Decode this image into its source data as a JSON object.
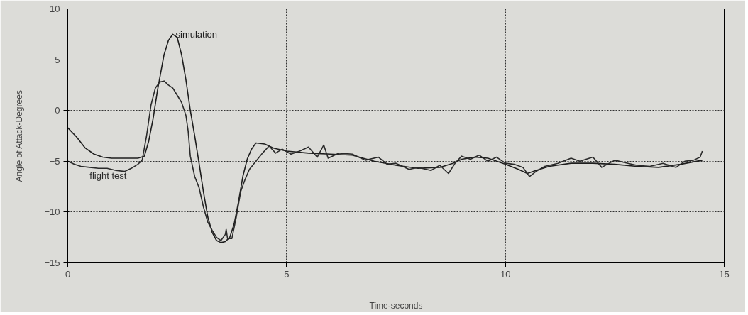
{
  "chart_data": {
    "type": "line",
    "xlabel": "Time-seconds",
    "ylabel": "Angle of Attack-Degrees",
    "xlim": [
      0,
      15
    ],
    "ylim": [
      -15,
      10
    ],
    "xticks": [
      0,
      5,
      10,
      15
    ],
    "yticks": [
      -15,
      -10,
      -5,
      0,
      5,
      10
    ],
    "grid": true,
    "line_style": "solid",
    "series": [
      {
        "name": "simulation",
        "color": "#1e1e1e",
        "x": [
          0,
          0.2,
          0.4,
          0.6,
          0.8,
          1.0,
          1.3,
          1.6,
          1.75,
          1.85,
          1.95,
          2.05,
          2.2,
          2.3,
          2.4,
          2.5,
          2.6,
          2.7,
          2.8,
          2.9,
          3.0,
          3.1,
          3.2,
          3.3,
          3.4,
          3.5,
          3.6,
          3.7,
          3.8,
          3.9,
          4.0,
          4.1,
          4.2,
          4.3,
          4.5,
          4.7,
          5.0,
          5.5,
          6.0,
          6.5,
          7.0,
          7.5,
          8.0,
          8.5,
          8.8,
          9.0,
          9.3,
          9.6,
          10.0,
          10.3,
          10.5,
          10.7,
          11.0,
          11.5,
          12.0,
          12.5,
          13.0,
          13.5,
          14.0,
          14.5
        ],
        "values": [
          -1.7,
          -2.6,
          -3.7,
          -4.3,
          -4.6,
          -4.7,
          -4.7,
          -4.7,
          -4.5,
          -3.0,
          -0.8,
          2.0,
          5.5,
          6.9,
          7.5,
          7.2,
          5.5,
          3.0,
          0.0,
          -2.5,
          -5.2,
          -8.0,
          -10.5,
          -12.0,
          -12.8,
          -13.0,
          -12.9,
          -12.5,
          -11.2,
          -9.0,
          -6.5,
          -4.8,
          -3.8,
          -3.2,
          -3.3,
          -3.7,
          -4.0,
          -4.2,
          -4.3,
          -4.4,
          -5.0,
          -5.4,
          -5.7,
          -5.6,
          -5.2,
          -4.8,
          -4.6,
          -4.7,
          -5.3,
          -5.8,
          -6.2,
          -5.9,
          -5.5,
          -5.2,
          -5.2,
          -5.3,
          -5.5,
          -5.6,
          -5.3,
          -4.9
        ]
      },
      {
        "name": "flight test",
        "color": "#2a2a2a",
        "x": [
          0,
          0.15,
          0.3,
          0.5,
          0.7,
          0.9,
          1.1,
          1.3,
          1.45,
          1.6,
          1.7,
          1.8,
          1.9,
          2.0,
          2.1,
          2.2,
          2.3,
          2.4,
          2.5,
          2.6,
          2.7,
          2.75,
          2.8,
          2.9,
          3.0,
          3.1,
          3.2,
          3.3,
          3.4,
          3.5,
          3.6,
          3.62,
          3.65,
          3.75,
          3.85,
          3.95,
          4.05,
          4.15,
          4.3,
          4.45,
          4.6,
          4.75,
          4.9,
          5.1,
          5.3,
          5.5,
          5.7,
          5.85,
          5.95,
          6.2,
          6.5,
          6.8,
          7.1,
          7.3,
          7.5,
          7.8,
          8.0,
          8.3,
          8.5,
          8.7,
          8.85,
          9.0,
          9.2,
          9.4,
          9.6,
          9.8,
          10.0,
          10.2,
          10.4,
          10.55,
          10.7,
          10.9,
          11.2,
          11.5,
          11.7,
          12.0,
          12.2,
          12.5,
          12.8,
          13.0,
          13.3,
          13.6,
          13.9,
          14.1,
          14.3,
          14.45,
          14.5
        ],
        "values": [
          -5.0,
          -5.3,
          -5.5,
          -5.6,
          -5.7,
          -5.7,
          -5.9,
          -6.0,
          -5.7,
          -5.3,
          -4.9,
          -2.5,
          0.5,
          2.2,
          2.8,
          2.9,
          2.5,
          2.2,
          1.5,
          0.8,
          -0.5,
          -2.0,
          -4.5,
          -6.5,
          -7.6,
          -9.5,
          -11.0,
          -11.8,
          -12.5,
          -12.8,
          -12.2,
          -11.7,
          -12.6,
          -12.6,
          -10.5,
          -8.0,
          -6.8,
          -5.8,
          -5.0,
          -4.2,
          -3.5,
          -4.2,
          -3.8,
          -4.3,
          -4.0,
          -3.6,
          -4.6,
          -3.4,
          -4.7,
          -4.2,
          -4.3,
          -4.9,
          -4.6,
          -5.3,
          -5.2,
          -5.8,
          -5.6,
          -5.9,
          -5.4,
          -6.2,
          -5.2,
          -4.5,
          -4.8,
          -4.4,
          -5.0,
          -4.6,
          -5.2,
          -5.3,
          -5.6,
          -6.5,
          -6.0,
          -5.5,
          -5.2,
          -4.7,
          -5.0,
          -4.6,
          -5.6,
          -4.9,
          -5.2,
          -5.4,
          -5.5,
          -5.2,
          -5.6,
          -5.0,
          -4.9,
          -4.6,
          -4.0
        ]
      }
    ]
  }
}
